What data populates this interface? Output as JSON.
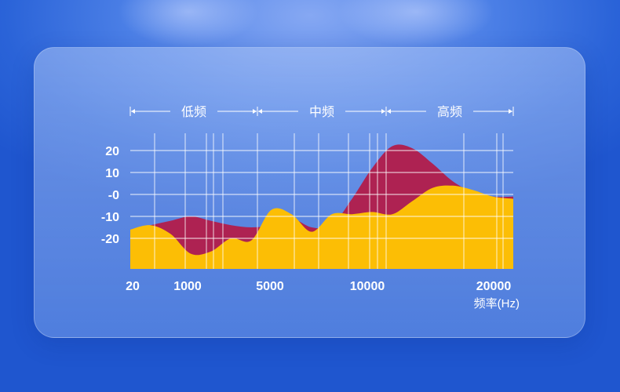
{
  "chart_data": {
    "type": "area",
    "xlabel": "频率(Hz)",
    "ylabel": "",
    "y_ticks": [
      "20",
      "10",
      "-0",
      "-10",
      "-20"
    ],
    "y_tick_values": [
      20,
      10,
      0,
      -10,
      -20
    ],
    "x_ticks": [
      "20",
      "1000",
      "5000",
      "10000",
      "20000"
    ],
    "ylim": [
      -32,
      24
    ],
    "bands": [
      {
        "label": "低频",
        "from_x": 0,
        "to_x": 4
      },
      {
        "label": "中频",
        "from_x": 4,
        "to_x": 11
      },
      {
        "label": "高频",
        "from_x": 11,
        "to_x": 19
      }
    ],
    "x_positions": [
      0,
      1,
      2,
      3,
      4,
      5,
      6,
      7,
      8,
      9,
      10,
      11,
      12,
      13,
      14,
      15,
      16,
      17,
      18,
      19
    ],
    "series": [
      {
        "color": "#ae2252",
        "values": [
          -16,
          -14,
          -12,
          -10,
          -12,
          -14,
          -15,
          -14,
          -11,
          -15,
          -14,
          -2,
          12,
          22,
          21,
          14,
          6,
          1,
          -1,
          -1
        ]
      },
      {
        "color": "#fcbe05",
        "values": [
          -16,
          -14,
          -18,
          -27,
          -26,
          -20,
          -21,
          -7,
          -9,
          -17,
          -9,
          -9,
          -8,
          -9,
          -3,
          3,
          4,
          2,
          -1,
          -2
        ]
      }
    ]
  },
  "colors": {
    "background": "#2a63d8",
    "grid": "#ffffff",
    "red_area": "#ae2252",
    "yellow_area": "#fcbe05",
    "text": "#ffffff"
  }
}
